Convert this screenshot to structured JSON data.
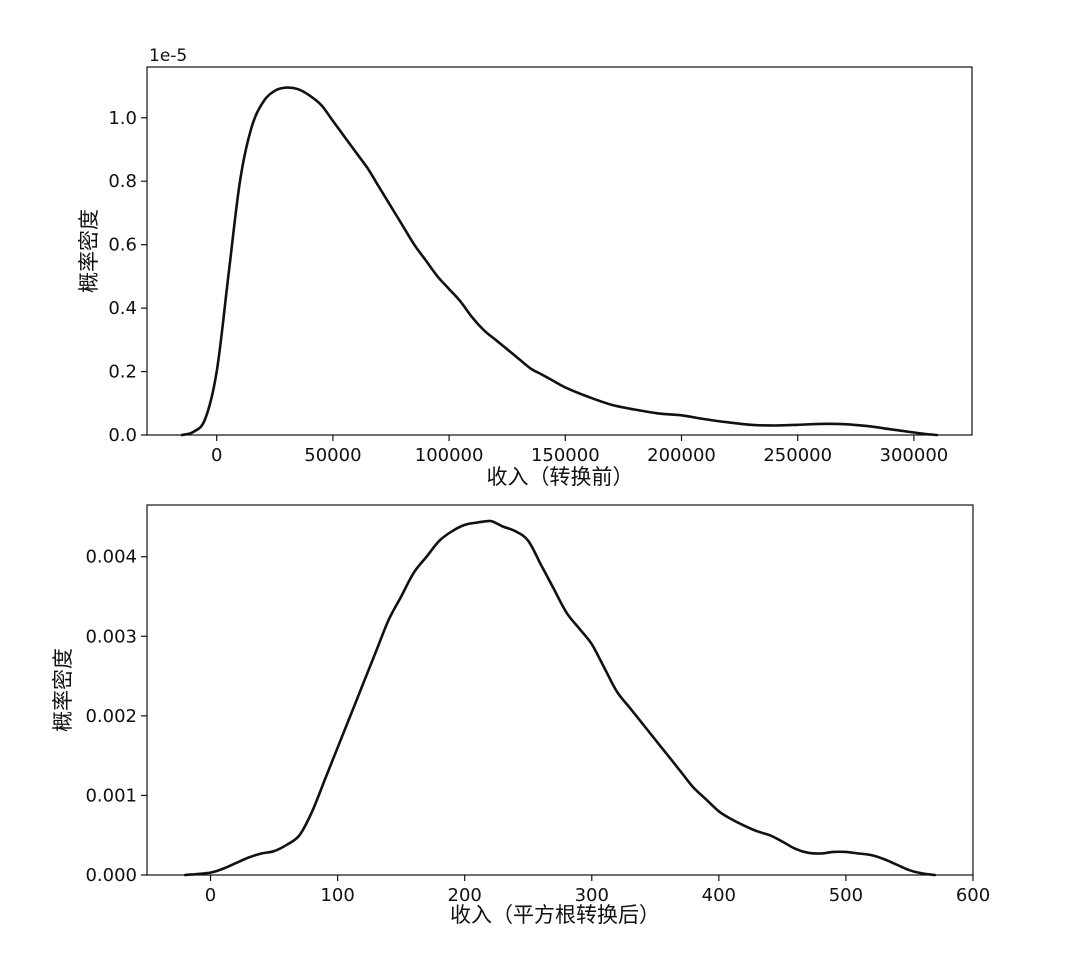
{
  "chart_data": [
    {
      "type": "line",
      "offset_text": "1e-5",
      "xlabel": "收入（转换前）",
      "ylabel": "概率密度",
      "xlim": [
        -30000,
        325000
      ],
      "ylim": [
        0,
        1.16
      ],
      "xticks": [
        0,
        50000,
        100000,
        150000,
        200000,
        250000,
        300000
      ],
      "xtick_labels": [
        "0",
        "50000",
        "100000",
        "150000",
        "200000",
        "250000",
        "300000"
      ],
      "yticks": [
        0.0,
        0.2,
        0.4,
        0.6,
        0.8,
        1.0
      ],
      "ytick_labels": [
        "0.0",
        "0.2",
        "0.4",
        "0.6",
        "0.8",
        "1.0"
      ],
      "grid": false,
      "series": [
        {
          "x": [
            -15000,
            -10000,
            -5000,
            0,
            5000,
            10000,
            15000,
            20000,
            25000,
            30000,
            35000,
            40000,
            45000,
            50000,
            55000,
            60000,
            65000,
            70000,
            75000,
            80000,
            85000,
            90000,
            95000,
            100000,
            105000,
            110000,
            115000,
            120000,
            125000,
            130000,
            135000,
            140000,
            145000,
            150000,
            160000,
            170000,
            180000,
            190000,
            200000,
            210000,
            220000,
            230000,
            240000,
            250000,
            260000,
            270000,
            280000,
            290000,
            300000,
            305000,
            310000
          ],
          "y": [
            0.0,
            0.01,
            0.05,
            0.2,
            0.5,
            0.8,
            0.97,
            1.05,
            1.085,
            1.095,
            1.09,
            1.07,
            1.04,
            0.99,
            0.94,
            0.89,
            0.84,
            0.78,
            0.72,
            0.66,
            0.6,
            0.55,
            0.5,
            0.46,
            0.42,
            0.37,
            0.33,
            0.3,
            0.27,
            0.24,
            0.21,
            0.19,
            0.17,
            0.15,
            0.12,
            0.095,
            0.08,
            0.068,
            0.062,
            0.05,
            0.04,
            0.032,
            0.03,
            0.032,
            0.035,
            0.034,
            0.028,
            0.018,
            0.008,
            0.003,
            0.0
          ]
        }
      ]
    },
    {
      "type": "line",
      "xlabel": "收入（平方根转换后）",
      "ylabel": "概率密度",
      "xlim": [
        -50,
        600
      ],
      "ylim": [
        0,
        0.00465
      ],
      "xticks": [
        0,
        100,
        200,
        300,
        400,
        500,
        600
      ],
      "xtick_labels": [
        "0",
        "100",
        "200",
        "300",
        "400",
        "500",
        "600"
      ],
      "yticks": [
        0.0,
        0.001,
        0.002,
        0.003,
        0.004
      ],
      "ytick_labels": [
        "0.000",
        "0.001",
        "0.002",
        "0.003",
        "0.004"
      ],
      "grid": false,
      "series": [
        {
          "x": [
            -20,
            0,
            10,
            20,
            30,
            40,
            50,
            60,
            70,
            80,
            90,
            100,
            110,
            120,
            130,
            140,
            150,
            160,
            170,
            180,
            190,
            200,
            210,
            220,
            225,
            230,
            240,
            250,
            260,
            270,
            280,
            290,
            300,
            310,
            320,
            330,
            340,
            350,
            360,
            370,
            380,
            390,
            400,
            410,
            420,
            430,
            440,
            450,
            460,
            470,
            480,
            490,
            500,
            510,
            520,
            530,
            540,
            550,
            560,
            570
          ],
          "y": [
            0.0,
            3e-05,
            8e-05,
            0.00015,
            0.00022,
            0.00027,
            0.0003,
            0.00038,
            0.0005,
            0.0008,
            0.0012,
            0.0016,
            0.002,
            0.0024,
            0.0028,
            0.0032,
            0.0035,
            0.0038,
            0.004,
            0.0042,
            0.00432,
            0.0044,
            0.00443,
            0.00445,
            0.00442,
            0.00438,
            0.00432,
            0.0042,
            0.0039,
            0.0036,
            0.0033,
            0.0031,
            0.0029,
            0.0026,
            0.0023,
            0.0021,
            0.0019,
            0.0017,
            0.0015,
            0.0013,
            0.0011,
            0.00095,
            0.0008,
            0.0007,
            0.00062,
            0.00055,
            0.0005,
            0.00042,
            0.00033,
            0.00028,
            0.00027,
            0.00029,
            0.00029,
            0.00027,
            0.00025,
            0.0002,
            0.00013,
            6e-05,
            2e-05,
            0.0
          ]
        }
      ]
    }
  ]
}
